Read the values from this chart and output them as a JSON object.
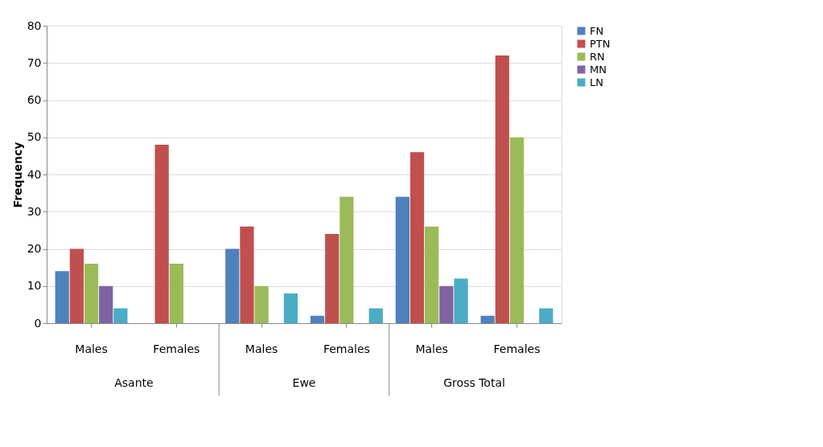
{
  "chart_data": {
    "type": "bar",
    "ylabel": "Frequency",
    "categories": [
      "Males",
      "Females",
      "Males",
      "Females",
      "Males",
      "Females"
    ],
    "series": [
      {
        "name": "FN",
        "color": "#4f81bd",
        "values": [
          14,
          0,
          20,
          2,
          34,
          2
        ]
      },
      {
        "name": "PTN",
        "color": "#c0504d",
        "values": [
          20,
          48,
          26,
          24,
          46,
          72
        ]
      },
      {
        "name": "RN",
        "color": "#9bbb59",
        "values": [
          16,
          16,
          10,
          34,
          26,
          50
        ]
      },
      {
        "name": "MN",
        "color": "#8064a2",
        "values": [
          10,
          0,
          0,
          0,
          10,
          0
        ]
      },
      {
        "name": "LN",
        "color": "#4bacc6",
        "values": [
          4,
          0,
          8,
          4,
          12,
          4
        ]
      }
    ],
    "annotations": [
      "Asante",
      "Ewe",
      "Gross Total"
    ],
    "ylim": [
      0,
      80
    ],
    "yticks": [
      0,
      10,
      20,
      30,
      40,
      50,
      60,
      70,
      80
    ],
    "grid": "y",
    "legend": "right"
  }
}
